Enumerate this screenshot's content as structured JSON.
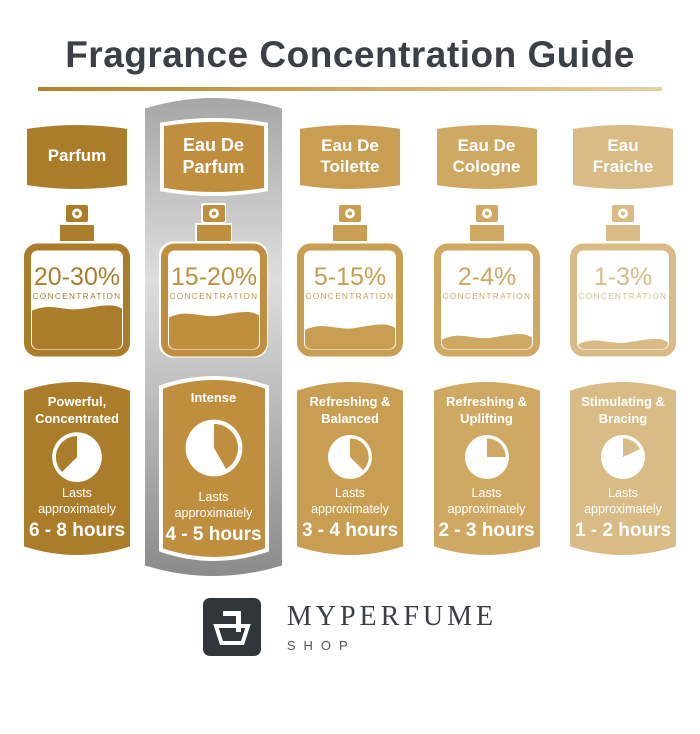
{
  "title": "Fragrance Concentration Guide",
  "theme": {
    "title_color": "#3b3f46",
    "underline_from": "#b2812c",
    "underline_to": "#e8d19c",
    "silver_top": "#a6a6a6",
    "silver_mid": "#dedede",
    "silver_bottom": "#8b8b8b",
    "logo_bg": "#31353c",
    "brand_color": "#3a3e45",
    "brand_sub_color": "#52565c"
  },
  "columns": [
    {
      "name": "Parfum",
      "color": "#ab7d2a",
      "concentration": "20-30%",
      "concentration_label": "CONCENTRATION",
      "fill_percent": 45,
      "character": "Powerful, Concentrated",
      "lasts_label": "Lasts approximately",
      "duration": "6 - 8 hours",
      "clock_start_deg": 225,
      "clock_end_deg": 360,
      "highlighted": false
    },
    {
      "name": "Eau De Parfum",
      "color": "#bf8f3f",
      "concentration": "15-20%",
      "concentration_label": "CONCENTRATION",
      "fill_percent": 38,
      "character": "Intense",
      "lasts_label": "Lasts approximately",
      "duration": "4 - 5 hours",
      "clock_start_deg": 0,
      "clock_end_deg": 150,
      "highlighted": true
    },
    {
      "name": "Eau De Toilette",
      "color": "#c89e52",
      "concentration": "5-15%",
      "concentration_label": "CONCENTRATION",
      "fill_percent": 25,
      "character": "Refreshing & Balanced",
      "lasts_label": "Lasts approximately",
      "duration": "3 - 4 hours",
      "clock_start_deg": 0,
      "clock_end_deg": 135,
      "highlighted": false
    },
    {
      "name": "Eau De Cologne",
      "color": "#cfa963",
      "concentration": "2-4%",
      "concentration_label": "CONCENTRATION",
      "fill_percent": 15,
      "character": "Refreshing & Uplifting",
      "lasts_label": "Lasts approximately",
      "duration": "2 - 3 hours",
      "clock_start_deg": 0,
      "clock_end_deg": 90,
      "highlighted": false
    },
    {
      "name": "Eau Fraiche",
      "color": "#d9bc85",
      "concentration": "1-3%",
      "concentration_label": "CONCENTRATION",
      "fill_percent": 10,
      "character": "Stimulating & Bracing",
      "lasts_label": "Lasts approximately",
      "duration": "1 - 2 hours",
      "clock_start_deg": 0,
      "clock_end_deg": 65,
      "highlighted": false
    }
  ],
  "footer": {
    "brand": "MYPERFUME",
    "sub": "SHOP"
  }
}
